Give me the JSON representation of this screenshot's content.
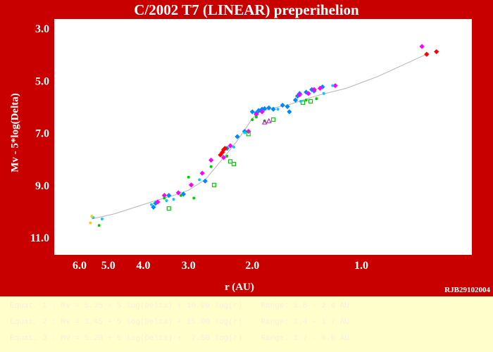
{
  "chart_data": {
    "type": "scatter",
    "title": "C/2002 T7 (LINEAR)  preperihelion",
    "xlabel": "r (AU)",
    "ylabel": "Mv - 5*log(Delta)",
    "x_scale": "log",
    "x_reversed": true,
    "y_reversed": true,
    "xlim": [
      0.6,
      7.0
    ],
    "ylim": [
      3.0,
      11.0
    ],
    "x_ticks": [
      {
        "value": 6.0,
        "label": "6.0"
      },
      {
        "value": 5.0,
        "label": "5.0"
      },
      {
        "value": 4.0,
        "label": "4.0"
      },
      {
        "value": 3.0,
        "label": "3.0"
      },
      {
        "value": 2.0,
        "label": "2.0"
      },
      {
        "value": 1.0,
        "label": "1.0"
      }
    ],
    "y_ticks": [
      {
        "value": 3.0,
        "label": "3.0"
      },
      {
        "value": 5.0,
        "label": "5.0"
      },
      {
        "value": 7.0,
        "label": "7.0"
      },
      {
        "value": 9.0,
        "label": "9.0"
      },
      {
        "value": 11.0,
        "label": "11.0"
      }
    ],
    "grid": false,
    "fit_curve": {
      "color": "#b4b4b4",
      "points": [
        [
          5.55,
          10.3
        ],
        [
          4.8,
          10.1
        ],
        [
          3.8,
          9.65
        ],
        [
          3.3,
          9.4
        ],
        [
          3.0,
          9.2
        ],
        [
          2.7,
          8.8
        ],
        [
          2.5,
          8.25
        ],
        [
          2.35,
          7.8
        ],
        [
          2.2,
          7.3
        ],
        [
          2.1,
          6.9
        ],
        [
          2.0,
          6.45
        ],
        [
          1.9,
          6.2
        ],
        [
          1.75,
          6.05
        ],
        [
          1.6,
          5.95
        ],
        [
          1.45,
          5.75
        ],
        [
          1.3,
          5.55
        ],
        [
          1.1,
          5.3
        ],
        [
          0.9,
          4.85
        ],
        [
          0.65,
          3.95
        ]
      ]
    },
    "series": [
      {
        "color": "#0088ff",
        "marker": "diamond-filled",
        "points": [
          [
            3.75,
            9.85
          ],
          [
            3.7,
            9.7
          ],
          [
            3.4,
            9.4
          ],
          [
            3.1,
            9.35
          ],
          [
            2.7,
            8.85
          ],
          [
            2.35,
            7.6
          ],
          [
            2.2,
            7.15
          ],
          [
            2.1,
            6.95
          ],
          [
            2.0,
            6.2
          ],
          [
            1.95,
            6.25
          ],
          [
            1.92,
            6.15
          ],
          [
            1.88,
            6.1
          ],
          [
            1.85,
            6.08
          ],
          [
            1.8,
            6.05
          ],
          [
            1.75,
            6.1
          ],
          [
            1.65,
            5.95
          ],
          [
            1.6,
            6.0
          ],
          [
            1.58,
            6.2
          ],
          [
            1.52,
            5.75
          ],
          [
            1.5,
            5.6
          ],
          [
            1.48,
            5.5
          ],
          [
            1.42,
            5.45
          ],
          [
            1.37,
            5.35
          ],
          [
            1.35,
            5.4
          ],
          [
            1.28,
            5.25
          ]
        ]
      },
      {
        "color": "#ff00ff",
        "marker": "diamond-filled",
        "points": [
          [
            3.65,
            9.65
          ],
          [
            3.5,
            9.4
          ],
          [
            3.2,
            9.3
          ],
          [
            2.95,
            9.0
          ],
          [
            2.75,
            8.55
          ],
          [
            2.6,
            8.05
          ],
          [
            2.4,
            7.95
          ],
          [
            2.3,
            7.5
          ],
          [
            2.05,
            6.95
          ],
          [
            1.95,
            6.3
          ],
          [
            1.88,
            6.2
          ],
          [
            1.48,
            5.55
          ],
          [
            1.4,
            5.5
          ],
          [
            1.35,
            5.35
          ],
          [
            1.3,
            5.3
          ],
          [
            1.18,
            5.2
          ],
          [
            0.68,
            3.7
          ]
        ]
      },
      {
        "color": "#00cc00",
        "marker": "dot-filled",
        "points": [
          [
            5.3,
            10.55
          ],
          [
            3.5,
            9.5
          ],
          [
            3.15,
            9.4
          ],
          [
            3.0,
            8.7
          ],
          [
            2.9,
            9.5
          ],
          [
            2.6,
            8.3
          ],
          [
            2.35,
            7.9
          ],
          [
            2.0,
            6.5
          ],
          [
            1.95,
            6.4
          ],
          [
            1.85,
            6.55
          ],
          [
            1.42,
            5.75
          ],
          [
            1.33,
            5.7
          ]
        ]
      },
      {
        "color": "#00cc00",
        "marker": "square-open",
        "points": [
          [
            3.4,
            9.9
          ],
          [
            2.55,
            9.0
          ],
          [
            2.3,
            8.1
          ],
          [
            2.25,
            8.2
          ],
          [
            2.05,
            7.05
          ],
          [
            1.75,
            6.5
          ],
          [
            1.45,
            5.85
          ],
          [
            1.38,
            5.8
          ]
        ]
      },
      {
        "color": "#00ccff",
        "marker": "dot-filled",
        "points": [
          [
            5.5,
            10.25
          ],
          [
            5.2,
            10.3
          ],
          [
            3.8,
            9.75
          ],
          [
            3.45,
            9.6
          ],
          [
            3.3,
            9.55
          ],
          [
            2.8,
            8.8
          ],
          [
            2.25,
            7.55
          ],
          [
            2.1,
            7.0
          ],
          [
            1.7,
            6.1
          ],
          [
            1.47,
            5.8
          ],
          [
            1.27,
            5.5
          ],
          [
            1.2,
            5.2
          ]
        ]
      },
      {
        "color": "#ff0000",
        "marker": "diamond-filled",
        "points": [
          [
            2.45,
            7.85
          ],
          [
            2.42,
            7.75
          ],
          [
            2.4,
            7.65
          ],
          [
            2.38,
            7.6
          ],
          [
            0.66,
            4.0
          ],
          [
            0.62,
            3.9
          ]
        ]
      },
      {
        "color": "#ffcc00",
        "marker": "dot-filled",
        "points": [
          [
            5.6,
            10.45
          ],
          [
            5.55,
            10.2
          ]
        ]
      },
      {
        "color": "#cc00cc",
        "marker": "triangle-open",
        "points": [
          [
            1.85,
            6.6
          ],
          [
            1.8,
            6.55
          ]
        ]
      }
    ]
  },
  "credit": "RJB29102004",
  "table_rows": [
    "Equat. 1 : Mv = 5.35 + 5 log(Delta) + 10.00 log(r)    Range: 5.8 - 2.4 AU",
    "Equat. 2 : Mv = 3.45 + 5 log(Delta) + 15.00 log(r)    Range: 2.4 - 1.7 AU",
    "Equat. 3 : Mv = 5.20 + 5 log(Delta) +  7.50 log(r)    Range: 1.7 - 0.6 AU"
  ]
}
